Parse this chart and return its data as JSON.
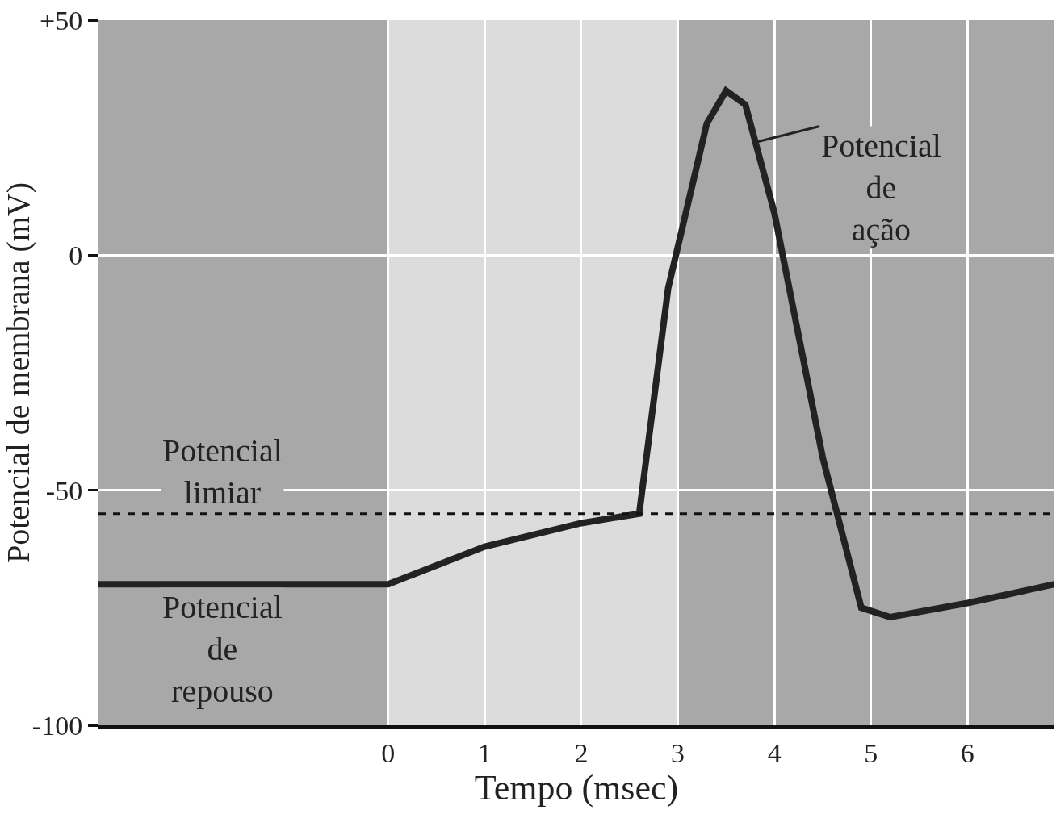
{
  "chart_data": {
    "type": "line",
    "xlabel": "Tempo (msec)",
    "ylabel": "Potencial de membrana (mV)",
    "x": [
      -3,
      0,
      1,
      2,
      2.6,
      2.9,
      3.3,
      3.5,
      3.7,
      4,
      4.5,
      4.9,
      5.2,
      6,
      6.9
    ],
    "series": [
      {
        "color": "#222222",
        "values": [
          -70,
          -70,
          -62,
          -57,
          -55,
          -7,
          28,
          35,
          32,
          9,
          -43,
          -75,
          -77,
          -74,
          -70
        ]
      }
    ],
    "xlim": [
      -3,
      6.9
    ],
    "xticks": [
      0,
      1,
      2,
      3,
      4,
      5,
      6
    ],
    "ylim": [
      -100,
      50
    ],
    "yticks": [
      {
        "value": 50,
        "label": "+50"
      },
      0,
      -50,
      -100
    ],
    "grid": true,
    "marker": "none",
    "line_style": "solid",
    "ref_lines": [
      {
        "axis": "y",
        "value": -55,
        "color": "#111111",
        "line_style": "dashed"
      }
    ],
    "bands": [
      {
        "axis": "x",
        "from": -3,
        "to": 0,
        "color": "#a8a8a8"
      },
      {
        "axis": "x",
        "from": 0,
        "to": 3,
        "color": "#dcdcdc"
      },
      {
        "axis": "x",
        "from": 3,
        "to": 6.9,
        "color": "#a8a8a8"
      }
    ],
    "annotations": [
      "Potencial limiar",
      "Potencial de repouso",
      {
        "text": "Potencial de ação",
        "x": 3.8,
        "y": 24
      }
    ]
  }
}
